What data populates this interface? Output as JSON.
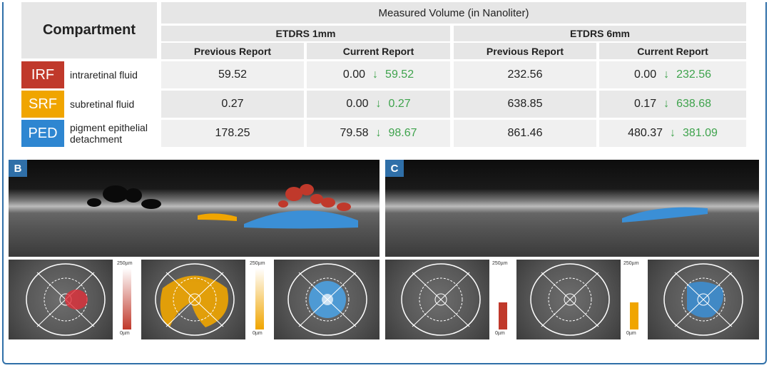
{
  "table": {
    "compartment_header": "Compartment",
    "measured_header": "Measured Volume (in Nanoliter)",
    "etdrs1": "ETDRS 1mm",
    "etdrs6": "ETDRS 6mm",
    "prev": "Previous Report",
    "curr": "Current Report",
    "arrow": "↓",
    "rows": [
      {
        "badge": "IRF",
        "badge_color": "#c0392b",
        "desc": "intraretinal fluid",
        "p1": "59.52",
        "c1": "0.00",
        "d1": "59.52",
        "p6": "232.56",
        "c6": "0.00",
        "d6": "232.56"
      },
      {
        "badge": "SRF",
        "badge_color": "#f0a500",
        "desc": "subretinal fluid",
        "p1": "0.27",
        "c1": "0.00",
        "d1": "0.27",
        "p6": "638.85",
        "c6": "0.17",
        "d6": "638.68"
      },
      {
        "badge": "PED",
        "badge_color": "#2e86d1",
        "desc": "pigment epithelial detachment",
        "p1": "178.25",
        "c1": "79.58",
        "d1": "98.67",
        "p6": "861.46",
        "c6": "480.37",
        "d6": "381.09"
      }
    ]
  },
  "panels": {
    "b_label": "B",
    "c_label": "C",
    "scale_top": "250µm",
    "scale_bottom": "0µm"
  },
  "colors": {
    "accent": "#2f6fa8",
    "green": "#3fa34d",
    "irf": "#c0392b",
    "srf": "#f0a500",
    "ped": "#2e86d1"
  }
}
